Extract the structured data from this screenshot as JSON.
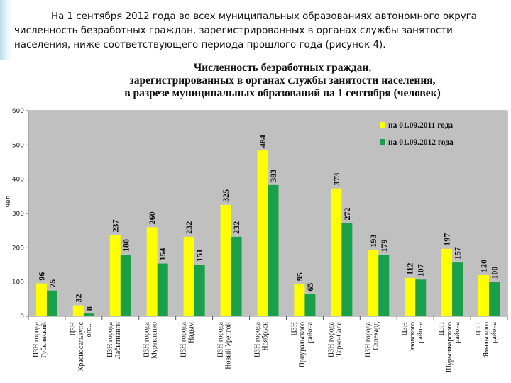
{
  "intro_text": "На 1 сентября 2012 года во всех муниципальных образованиях автономного округа численность безработных граждан, зарегистрированных в органах службы занятости населения, ниже соответствующего периода прошлого года (рисунок 4).",
  "chart_data": {
    "type": "bar",
    "title": [
      "Численность безработных граждан,",
      "зарегистрированных в органах службы занятости  населения,",
      "в разрезе муниципальных образований на 1 сентября (человек)"
    ],
    "ylabel": "чел",
    "ylim": [
      0,
      600
    ],
    "yticks": [
      "0",
      "100",
      "200",
      "300",
      "400",
      "500",
      "600"
    ],
    "grid": false,
    "legend_position": "top-right",
    "categories": [
      [
        "ЦЗН города",
        "Губкинский"
      ],
      [
        "ЦЗН",
        "Красноселькупс",
        "ого..."
      ],
      [
        "ЦЗН города",
        "Лабытнанги"
      ],
      [
        "ЦЗН города",
        "Муравленко"
      ],
      [
        "ЦЗН города",
        "Надым"
      ],
      [
        "ЦЗН города",
        "Новый Уренгой"
      ],
      [
        "ЦЗН города",
        "Ноябрьск"
      ],
      [
        "ЦЗН",
        "Приуральского",
        "района"
      ],
      [
        "ЦЗН города",
        "Тарко-Сале"
      ],
      [
        "ЦЗН города",
        "Салехард"
      ],
      [
        "ЦЗН",
        "Тазовского",
        "района"
      ],
      [
        "ЦЗН",
        "Шурышкарского",
        "района"
      ],
      [
        "ЦЗН",
        "Ямальского",
        "района"
      ]
    ],
    "series": [
      {
        "name": "на 01.09.2011 года",
        "color": "#ffff00",
        "values": [
          96,
          32,
          237,
          260,
          232,
          325,
          484,
          95,
          373,
          193,
          112,
          197,
          120
        ]
      },
      {
        "name": "на 01.09.2012 года",
        "color": "#1aa04a",
        "values": [
          75,
          8,
          180,
          154,
          151,
          232,
          383,
          65,
          272,
          179,
          107,
          157,
          100
        ]
      }
    ],
    "plot_background": "#c0c0c0"
  }
}
